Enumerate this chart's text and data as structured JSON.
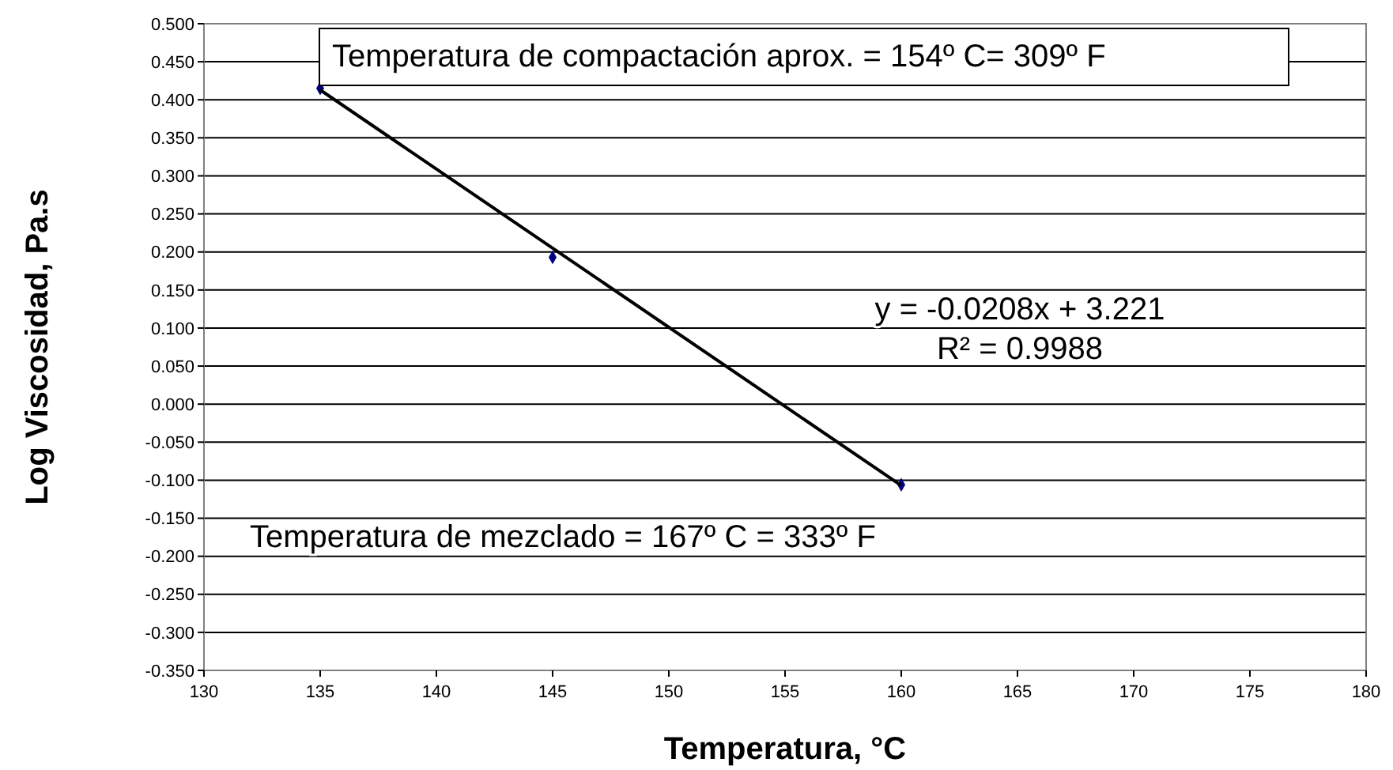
{
  "chart_data": {
    "type": "scatter",
    "xlabel": "Temperatura, °C",
    "ylabel": "Log Viscosidad, Pa.s",
    "xlim": [
      130,
      180
    ],
    "xticks": [
      130,
      135,
      140,
      145,
      150,
      155,
      160,
      165,
      170,
      175,
      180
    ],
    "ylim": [
      -0.35,
      0.5
    ],
    "yticks": [
      {
        "value": 0.5,
        "label": "0.500"
      },
      {
        "value": 0.45,
        "label": "0.450"
      },
      {
        "value": 0.4,
        "label": "0.400"
      },
      {
        "value": 0.35,
        "label": "0.350"
      },
      {
        "value": 0.3,
        "label": "0.300"
      },
      {
        "value": 0.25,
        "label": "0.250"
      },
      {
        "value": 0.2,
        "label": "0.200"
      },
      {
        "value": 0.15,
        "label": "0.150"
      },
      {
        "value": 0.1,
        "label": "0.100"
      },
      {
        "value": 0.05,
        "label": "0.050"
      },
      {
        "value": 0,
        "label": "0.000"
      },
      {
        "value": -0.05,
        "label": "-0.050"
      },
      {
        "value": -0.1,
        "label": "-0.100"
      },
      {
        "value": -0.15,
        "label": "-0.150"
      },
      {
        "value": -0.2,
        "label": "-0.200"
      },
      {
        "value": -0.25,
        "label": "-0.250"
      },
      {
        "value": -0.3,
        "label": "-0.300"
      },
      {
        "value": -0.35,
        "label": "-0.350"
      }
    ],
    "grid": "y",
    "marker": "diamond",
    "series": [
      {
        "color": "#000080",
        "x": [
          135,
          145,
          160
        ],
        "values": [
          0.415,
          0.193,
          -0.106
        ]
      },
      {
        "type": "line",
        "color": "#000000",
        "x": [
          135,
          160
        ],
        "values": [
          0.413,
          -0.107
        ],
        "line_style": "solid",
        "marker": "none"
      }
    ],
    "annotations": [
      "Temperatura de compactación aprox. = 154º C= 309º F",
      "y = -0.0208x + 3.221",
      "R² = 0.9988",
      "Temperatura de mezclado = 167º C = 333º F"
    ]
  }
}
